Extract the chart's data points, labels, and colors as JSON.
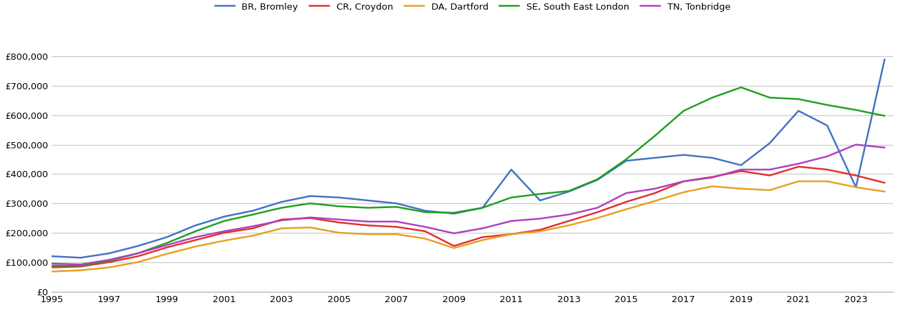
{
  "years": [
    1995,
    1996,
    1997,
    1998,
    1999,
    2000,
    2001,
    2002,
    2003,
    2004,
    2005,
    2006,
    2007,
    2008,
    2009,
    2010,
    2011,
    2012,
    2013,
    2014,
    2015,
    2016,
    2017,
    2018,
    2019,
    2020,
    2021,
    2022,
    2023,
    2024
  ],
  "BR_Bromley": [
    120000,
    115000,
    130000,
    155000,
    185000,
    225000,
    255000,
    275000,
    305000,
    325000,
    320000,
    310000,
    300000,
    275000,
    265000,
    285000,
    415000,
    310000,
    340000,
    380000,
    445000,
    455000,
    465000,
    455000,
    430000,
    505000,
    615000,
    565000,
    355000,
    790000
  ],
  "CR_Croydon": [
    82000,
    85000,
    100000,
    120000,
    150000,
    175000,
    200000,
    215000,
    245000,
    250000,
    235000,
    225000,
    220000,
    205000,
    155000,
    185000,
    195000,
    210000,
    240000,
    270000,
    305000,
    335000,
    375000,
    390000,
    410000,
    395000,
    425000,
    415000,
    395000,
    370000
  ],
  "DA_Dartford": [
    68000,
    72000,
    82000,
    100000,
    128000,
    153000,
    173000,
    190000,
    215000,
    218000,
    200000,
    195000,
    195000,
    180000,
    148000,
    175000,
    195000,
    205000,
    225000,
    250000,
    280000,
    308000,
    338000,
    358000,
    350000,
    345000,
    375000,
    375000,
    355000,
    340000
  ],
  "SE_SouthEastLondon": [
    88000,
    88000,
    105000,
    130000,
    165000,
    205000,
    240000,
    262000,
    285000,
    300000,
    290000,
    285000,
    288000,
    270000,
    268000,
    285000,
    320000,
    332000,
    342000,
    382000,
    450000,
    530000,
    615000,
    660000,
    695000,
    660000,
    655000,
    635000,
    618000,
    598000
  ],
  "TN_Tonbridge": [
    95000,
    92000,
    108000,
    130000,
    158000,
    185000,
    205000,
    222000,
    242000,
    252000,
    245000,
    238000,
    238000,
    220000,
    198000,
    215000,
    240000,
    248000,
    262000,
    285000,
    335000,
    350000,
    375000,
    388000,
    415000,
    415000,
    435000,
    460000,
    500000,
    490000
  ],
  "colors": {
    "BR_Bromley": "#4472c4",
    "CR_Croydon": "#e03030",
    "DA_Dartford": "#e8a020",
    "SE_SouthEastLondon": "#20a020",
    "TN_Tonbridge": "#b040c0"
  },
  "legend_labels": {
    "BR_Bromley": "BR, Bromley",
    "CR_Croydon": "CR, Croydon",
    "DA_Dartford": "DA, Dartford",
    "SE_SouthEastLondon": "SE, South East London",
    "TN_Tonbridge": "TN, Tonbridge"
  },
  "ylim": [
    0,
    870000
  ],
  "yticks": [
    0,
    100000,
    200000,
    300000,
    400000,
    500000,
    600000,
    700000,
    800000
  ],
  "xticks": [
    1995,
    1997,
    1999,
    2001,
    2003,
    2005,
    2007,
    2009,
    2011,
    2013,
    2015,
    2017,
    2019,
    2021,
    2023
  ],
  "grid_color": "#c8c8c8",
  "background_color": "#ffffff",
  "line_width": 1.8
}
